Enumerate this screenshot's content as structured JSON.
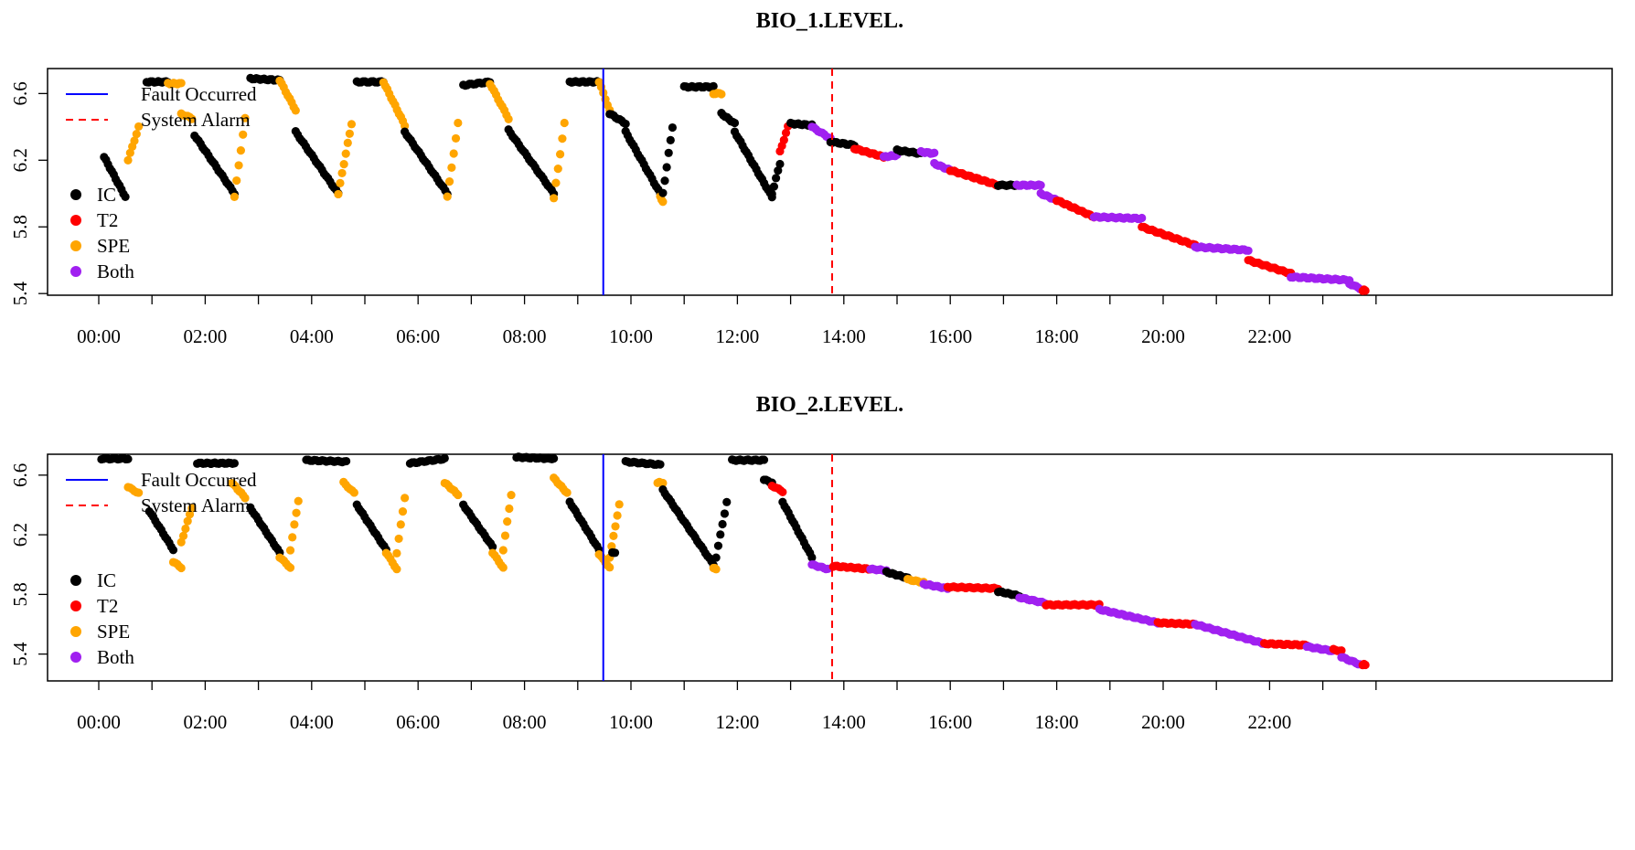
{
  "colors": {
    "IC": "#000000",
    "T2": "#ff0000",
    "SPE": "#ffa500",
    "Both": "#a020f0",
    "fault_line": "#0000ff",
    "alarm_line": "#ff0000"
  },
  "legend": {
    "fault": "Fault Occurred",
    "alarm": "System Alarm",
    "classes": [
      "IC",
      "T2",
      "SPE",
      "Both"
    ]
  },
  "chart_data": [
    {
      "type": "scatter",
      "title": "BIO_1.LEVEL.",
      "xlabel": "",
      "ylabel": "",
      "x_unit": "hours",
      "xlim": [
        -0.85,
        25
      ],
      "ylim": [
        5.39,
        6.75
      ],
      "x_tick_labels": [
        "00:00",
        "02:00",
        "04:00",
        "06:00",
        "08:00",
        "10:00",
        "12:00",
        "14:00",
        "16:00",
        "18:00",
        "20:00",
        "22:00"
      ],
      "y_ticks": [
        5.4,
        5.8,
        6.2,
        6.6
      ],
      "y_tick_labels": [
        "5.4",
        "5.8",
        "6.2",
        "6.6"
      ],
      "fault_occurred_hour": 9.48,
      "system_alarm_hour": 13.78,
      "legend_position": "top-left",
      "grid": false,
      "segments": [
        {
          "t0": 0.1,
          "t1": 0.5,
          "y0": 6.22,
          "y1": 5.98,
          "class": "IC"
        },
        {
          "t0": 0.55,
          "t1": 0.75,
          "y0": 6.2,
          "y1": 6.4,
          "class": "SPE"
        },
        {
          "t0": 0.9,
          "t1": 1.3,
          "y0": 6.67,
          "y1": 6.67,
          "class": "IC"
        },
        {
          "t0": 1.3,
          "t1": 1.55,
          "y0": 6.66,
          "y1": 6.66,
          "class": "SPE"
        },
        {
          "t0": 1.55,
          "t1": 1.75,
          "y0": 6.48,
          "y1": 6.45,
          "class": "SPE"
        },
        {
          "t0": 1.8,
          "t1": 2.55,
          "y0": 6.35,
          "y1": 6.0,
          "class": "IC"
        },
        {
          "t0": 2.55,
          "t1": 2.75,
          "y0": 5.98,
          "y1": 6.45,
          "class": "SPE"
        },
        {
          "t0": 2.85,
          "t1": 3.4,
          "y0": 6.69,
          "y1": 6.68,
          "class": "IC"
        },
        {
          "t0": 3.4,
          "t1": 3.7,
          "y0": 6.68,
          "y1": 6.5,
          "class": "SPE"
        },
        {
          "t0": 3.7,
          "t1": 4.5,
          "y0": 6.37,
          "y1": 6.0,
          "class": "IC"
        },
        {
          "t0": 4.5,
          "t1": 4.75,
          "y0": 6.0,
          "y1": 6.42,
          "class": "SPE"
        },
        {
          "t0": 4.85,
          "t1": 5.35,
          "y0": 6.67,
          "y1": 6.67,
          "class": "IC"
        },
        {
          "t0": 5.35,
          "t1": 5.75,
          "y0": 6.67,
          "y1": 6.41,
          "class": "SPE"
        },
        {
          "t0": 5.75,
          "t1": 6.55,
          "y0": 6.37,
          "y1": 6.0,
          "class": "IC"
        },
        {
          "t0": 6.55,
          "t1": 6.75,
          "y0": 5.98,
          "y1": 6.42,
          "class": "SPE"
        },
        {
          "t0": 6.85,
          "t1": 7.35,
          "y0": 6.65,
          "y1": 6.67,
          "class": "IC"
        },
        {
          "t0": 7.35,
          "t1": 7.7,
          "y0": 6.66,
          "y1": 6.45,
          "class": "SPE"
        },
        {
          "t0": 7.7,
          "t1": 8.55,
          "y0": 6.38,
          "y1": 6.0,
          "class": "IC"
        },
        {
          "t0": 8.55,
          "t1": 8.75,
          "y0": 5.97,
          "y1": 6.42,
          "class": "SPE"
        },
        {
          "t0": 8.85,
          "t1": 9.4,
          "y0": 6.67,
          "y1": 6.67,
          "class": "IC"
        },
        {
          "t0": 9.4,
          "t1": 9.6,
          "y0": 6.67,
          "y1": 6.5,
          "class": "SPE"
        },
        {
          "t0": 9.6,
          "t1": 9.9,
          "y0": 6.48,
          "y1": 6.42,
          "class": "IC"
        },
        {
          "t0": 9.9,
          "t1": 10.55,
          "y0": 6.37,
          "y1": 6.0,
          "class": "IC"
        },
        {
          "t0": 10.55,
          "t1": 10.6,
          "y0": 5.98,
          "y1": 5.95,
          "class": "SPE"
        },
        {
          "t0": 10.6,
          "t1": 10.78,
          "y0": 6.0,
          "y1": 6.4,
          "class": "IC"
        },
        {
          "t0": 11.0,
          "t1": 11.55,
          "y0": 6.64,
          "y1": 6.64,
          "class": "IC"
        },
        {
          "t0": 11.55,
          "t1": 11.7,
          "y0": 6.6,
          "y1": 6.6,
          "class": "SPE"
        },
        {
          "t0": 11.7,
          "t1": 11.95,
          "y0": 6.48,
          "y1": 6.42,
          "class": "IC"
        },
        {
          "t0": 11.95,
          "t1": 12.65,
          "y0": 6.37,
          "y1": 5.98,
          "class": "IC"
        },
        {
          "t0": 12.65,
          "t1": 12.8,
          "y0": 6.0,
          "y1": 6.18,
          "class": "IC"
        },
        {
          "t0": 12.8,
          "t1": 12.95,
          "y0": 6.25,
          "y1": 6.4,
          "class": "T2"
        },
        {
          "t0": 13.0,
          "t1": 13.4,
          "y0": 6.42,
          "y1": 6.41,
          "class": "IC"
        },
        {
          "t0": 13.4,
          "t1": 13.75,
          "y0": 6.4,
          "y1": 6.33,
          "class": "Both"
        },
        {
          "t0": 13.75,
          "t1": 14.2,
          "y0": 6.31,
          "y1": 6.29,
          "class": "IC"
        },
        {
          "t0": 14.2,
          "t1": 14.75,
          "y0": 6.27,
          "y1": 6.22,
          "class": "T2"
        },
        {
          "t0": 14.75,
          "t1": 15.0,
          "y0": 6.22,
          "y1": 6.23,
          "class": "Both"
        },
        {
          "t0": 15.0,
          "t1": 15.45,
          "y0": 6.26,
          "y1": 6.24,
          "class": "IC"
        },
        {
          "t0": 15.45,
          "t1": 15.7,
          "y0": 6.25,
          "y1": 6.24,
          "class": "Both"
        },
        {
          "t0": 15.7,
          "t1": 16.0,
          "y0": 6.18,
          "y1": 6.14,
          "class": "Both"
        },
        {
          "t0": 16.0,
          "t1": 16.9,
          "y0": 6.14,
          "y1": 6.05,
          "class": "T2"
        },
        {
          "t0": 16.9,
          "t1": 17.25,
          "y0": 6.05,
          "y1": 6.05,
          "class": "IC"
        },
        {
          "t0": 17.25,
          "t1": 17.7,
          "y0": 6.05,
          "y1": 6.05,
          "class": "Both"
        },
        {
          "t0": 17.7,
          "t1": 18.0,
          "y0": 6.0,
          "y1": 5.96,
          "class": "Both"
        },
        {
          "t0": 18.0,
          "t1": 18.7,
          "y0": 5.96,
          "y1": 5.86,
          "class": "T2"
        },
        {
          "t0": 18.7,
          "t1": 19.6,
          "y0": 5.86,
          "y1": 5.85,
          "class": "Both"
        },
        {
          "t0": 19.6,
          "t1": 20.6,
          "y0": 5.8,
          "y1": 5.69,
          "class": "T2"
        },
        {
          "t0": 20.6,
          "t1": 21.6,
          "y0": 5.68,
          "y1": 5.66,
          "class": "Both"
        },
        {
          "t0": 21.6,
          "t1": 22.4,
          "y0": 5.6,
          "y1": 5.52,
          "class": "T2"
        },
        {
          "t0": 22.4,
          "t1": 23.5,
          "y0": 5.5,
          "y1": 5.48,
          "class": "Both"
        },
        {
          "t0": 23.5,
          "t1": 23.7,
          "y0": 5.46,
          "y1": 5.43,
          "class": "Both"
        },
        {
          "t0": 23.75,
          "t1": 23.8,
          "y0": 5.42,
          "y1": 5.42,
          "class": "T2"
        }
      ]
    },
    {
      "type": "scatter",
      "title": "BIO_2.LEVEL.",
      "xlabel": "",
      "ylabel": "",
      "x_unit": "hours",
      "xlim": [
        -0.85,
        25
      ],
      "ylim": [
        5.22,
        6.74
      ],
      "x_tick_labels": [
        "00:00",
        "02:00",
        "04:00",
        "06:00",
        "08:00",
        "10:00",
        "12:00",
        "14:00",
        "16:00",
        "18:00",
        "20:00",
        "22:00"
      ],
      "y_ticks": [
        5.4,
        5.8,
        6.2,
        6.6
      ],
      "y_tick_labels": [
        "5.4",
        "5.8",
        "6.2",
        "6.6"
      ],
      "fault_occurred_hour": 9.48,
      "system_alarm_hour": 13.78,
      "legend_position": "top-left",
      "grid": false,
      "segments": [
        {
          "t0": 0.05,
          "t1": 0.55,
          "y0": 6.71,
          "y1": 6.71,
          "class": "IC"
        },
        {
          "t0": 0.55,
          "t1": 0.75,
          "y0": 6.52,
          "y1": 6.48,
          "class": "SPE"
        },
        {
          "t0": 0.95,
          "t1": 1.4,
          "y0": 6.36,
          "y1": 6.1,
          "class": "IC"
        },
        {
          "t0": 1.4,
          "t1": 1.55,
          "y0": 6.02,
          "y1": 5.98,
          "class": "SPE"
        },
        {
          "t0": 1.55,
          "t1": 1.75,
          "y0": 6.15,
          "y1": 6.38,
          "class": "SPE"
        },
        {
          "t0": 1.85,
          "t1": 2.55,
          "y0": 6.68,
          "y1": 6.68,
          "class": "IC"
        },
        {
          "t0": 2.5,
          "t1": 2.75,
          "y0": 6.55,
          "y1": 6.45,
          "class": "SPE"
        },
        {
          "t0": 2.85,
          "t1": 3.4,
          "y0": 6.38,
          "y1": 6.08,
          "class": "IC"
        },
        {
          "t0": 3.4,
          "t1": 3.6,
          "y0": 6.05,
          "y1": 5.98,
          "class": "SPE"
        },
        {
          "t0": 3.6,
          "t1": 3.75,
          "y0": 6.1,
          "y1": 6.43,
          "class": "SPE"
        },
        {
          "t0": 3.9,
          "t1": 4.65,
          "y0": 6.7,
          "y1": 6.69,
          "class": "IC"
        },
        {
          "t0": 4.6,
          "t1": 4.8,
          "y0": 6.55,
          "y1": 6.48,
          "class": "SPE"
        },
        {
          "t0": 4.85,
          "t1": 5.4,
          "y0": 6.4,
          "y1": 6.1,
          "class": "IC"
        },
        {
          "t0": 5.4,
          "t1": 5.6,
          "y0": 6.08,
          "y1": 5.97,
          "class": "SPE"
        },
        {
          "t0": 5.6,
          "t1": 5.75,
          "y0": 6.08,
          "y1": 6.45,
          "class": "SPE"
        },
        {
          "t0": 5.85,
          "t1": 6.5,
          "y0": 6.68,
          "y1": 6.71,
          "class": "IC"
        },
        {
          "t0": 6.5,
          "t1": 6.75,
          "y0": 6.55,
          "y1": 6.47,
          "class": "SPE"
        },
        {
          "t0": 6.85,
          "t1": 7.4,
          "y0": 6.4,
          "y1": 6.12,
          "class": "IC"
        },
        {
          "t0": 7.4,
          "t1": 7.6,
          "y0": 6.08,
          "y1": 5.98,
          "class": "SPE"
        },
        {
          "t0": 7.6,
          "t1": 7.75,
          "y0": 6.1,
          "y1": 6.47,
          "class": "SPE"
        },
        {
          "t0": 7.85,
          "t1": 8.55,
          "y0": 6.72,
          "y1": 6.71,
          "class": "IC"
        },
        {
          "t0": 8.55,
          "t1": 8.8,
          "y0": 6.58,
          "y1": 6.48,
          "class": "SPE"
        },
        {
          "t0": 8.85,
          "t1": 9.4,
          "y0": 6.42,
          "y1": 6.1,
          "class": "IC"
        },
        {
          "t0": 9.4,
          "t1": 9.6,
          "y0": 6.07,
          "y1": 5.98,
          "class": "SPE"
        },
        {
          "t0": 9.6,
          "t1": 9.78,
          "y0": 6.05,
          "y1": 6.4,
          "class": "SPE"
        },
        {
          "t0": 9.65,
          "t1": 9.7,
          "y0": 6.08,
          "y1": 6.08,
          "class": "IC"
        },
        {
          "t0": 9.9,
          "t1": 10.55,
          "y0": 6.69,
          "y1": 6.67,
          "class": "IC"
        },
        {
          "t0": 10.5,
          "t1": 10.6,
          "y0": 6.55,
          "y1": 6.55,
          "class": "SPE"
        },
        {
          "t0": 10.6,
          "t1": 11.55,
          "y0": 6.5,
          "y1": 6.0,
          "class": "IC"
        },
        {
          "t0": 11.55,
          "t1": 11.6,
          "y0": 5.98,
          "y1": 5.97,
          "class": "SPE"
        },
        {
          "t0": 11.6,
          "t1": 11.8,
          "y0": 6.05,
          "y1": 6.42,
          "class": "IC"
        },
        {
          "t0": 11.9,
          "t1": 12.5,
          "y0": 6.7,
          "y1": 6.7,
          "class": "IC"
        },
        {
          "t0": 12.5,
          "t1": 12.65,
          "y0": 6.57,
          "y1": 6.55,
          "class": "IC"
        },
        {
          "t0": 12.65,
          "t1": 12.85,
          "y0": 6.53,
          "y1": 6.49,
          "class": "T2"
        },
        {
          "t0": 12.85,
          "t1": 13.4,
          "y0": 6.42,
          "y1": 6.05,
          "class": "IC"
        },
        {
          "t0": 13.4,
          "t1": 13.7,
          "y0": 6.0,
          "y1": 5.97,
          "class": "Both"
        },
        {
          "t0": 13.8,
          "t1": 14.5,
          "y0": 5.99,
          "y1": 5.97,
          "class": "T2"
        },
        {
          "t0": 14.5,
          "t1": 14.8,
          "y0": 5.97,
          "y1": 5.96,
          "class": "Both"
        },
        {
          "t0": 14.8,
          "t1": 15.2,
          "y0": 5.95,
          "y1": 5.91,
          "class": "IC"
        },
        {
          "t0": 15.2,
          "t1": 15.5,
          "y0": 5.9,
          "y1": 5.88,
          "class": "SPE"
        },
        {
          "t0": 15.5,
          "t1": 15.95,
          "y0": 5.87,
          "y1": 5.84,
          "class": "Both"
        },
        {
          "t0": 15.95,
          "t1": 16.9,
          "y0": 5.85,
          "y1": 5.84,
          "class": "T2"
        },
        {
          "t0": 16.9,
          "t1": 17.3,
          "y0": 5.82,
          "y1": 5.79,
          "class": "IC"
        },
        {
          "t0": 17.3,
          "t1": 17.8,
          "y0": 5.78,
          "y1": 5.74,
          "class": "Both"
        },
        {
          "t0": 17.8,
          "t1": 18.8,
          "y0": 5.73,
          "y1": 5.73,
          "class": "T2"
        },
        {
          "t0": 18.8,
          "t1": 19.9,
          "y0": 5.7,
          "y1": 5.61,
          "class": "Both"
        },
        {
          "t0": 19.9,
          "t1": 20.6,
          "y0": 5.61,
          "y1": 5.6,
          "class": "T2"
        },
        {
          "t0": 20.6,
          "t1": 21.9,
          "y0": 5.6,
          "y1": 5.47,
          "class": "Both"
        },
        {
          "t0": 21.9,
          "t1": 22.7,
          "y0": 5.47,
          "y1": 5.46,
          "class": "T2"
        },
        {
          "t0": 22.7,
          "t1": 23.2,
          "y0": 5.45,
          "y1": 5.42,
          "class": "Both"
        },
        {
          "t0": 23.2,
          "t1": 23.35,
          "y0": 5.43,
          "y1": 5.42,
          "class": "T2"
        },
        {
          "t0": 23.35,
          "t1": 23.7,
          "y0": 5.38,
          "y1": 5.33,
          "class": "Both"
        },
        {
          "t0": 23.75,
          "t1": 23.8,
          "y0": 5.33,
          "y1": 5.33,
          "class": "T2"
        }
      ]
    }
  ]
}
